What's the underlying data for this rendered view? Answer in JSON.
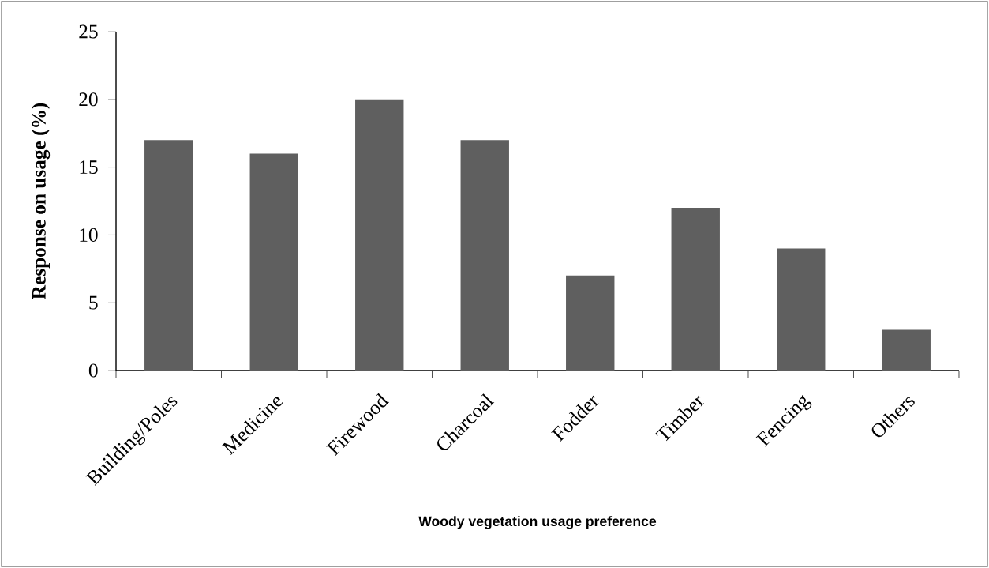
{
  "chart_data": {
    "type": "bar",
    "xlabel": "Woody vegetation usage preference",
    "ylabel": "Response on usage (%)",
    "categories": [
      "Building/Poles",
      "Medicine",
      "Firewood",
      "Charcoal",
      "Fodder",
      "Timber",
      "Fencing",
      "Others"
    ],
    "values": [
      17,
      16,
      20,
      17,
      7,
      12,
      9,
      3
    ],
    "color": "#5f5f5f",
    "ylim": [
      0,
      25
    ],
    "yticks": [
      0,
      5,
      10,
      15,
      20,
      25
    ]
  }
}
